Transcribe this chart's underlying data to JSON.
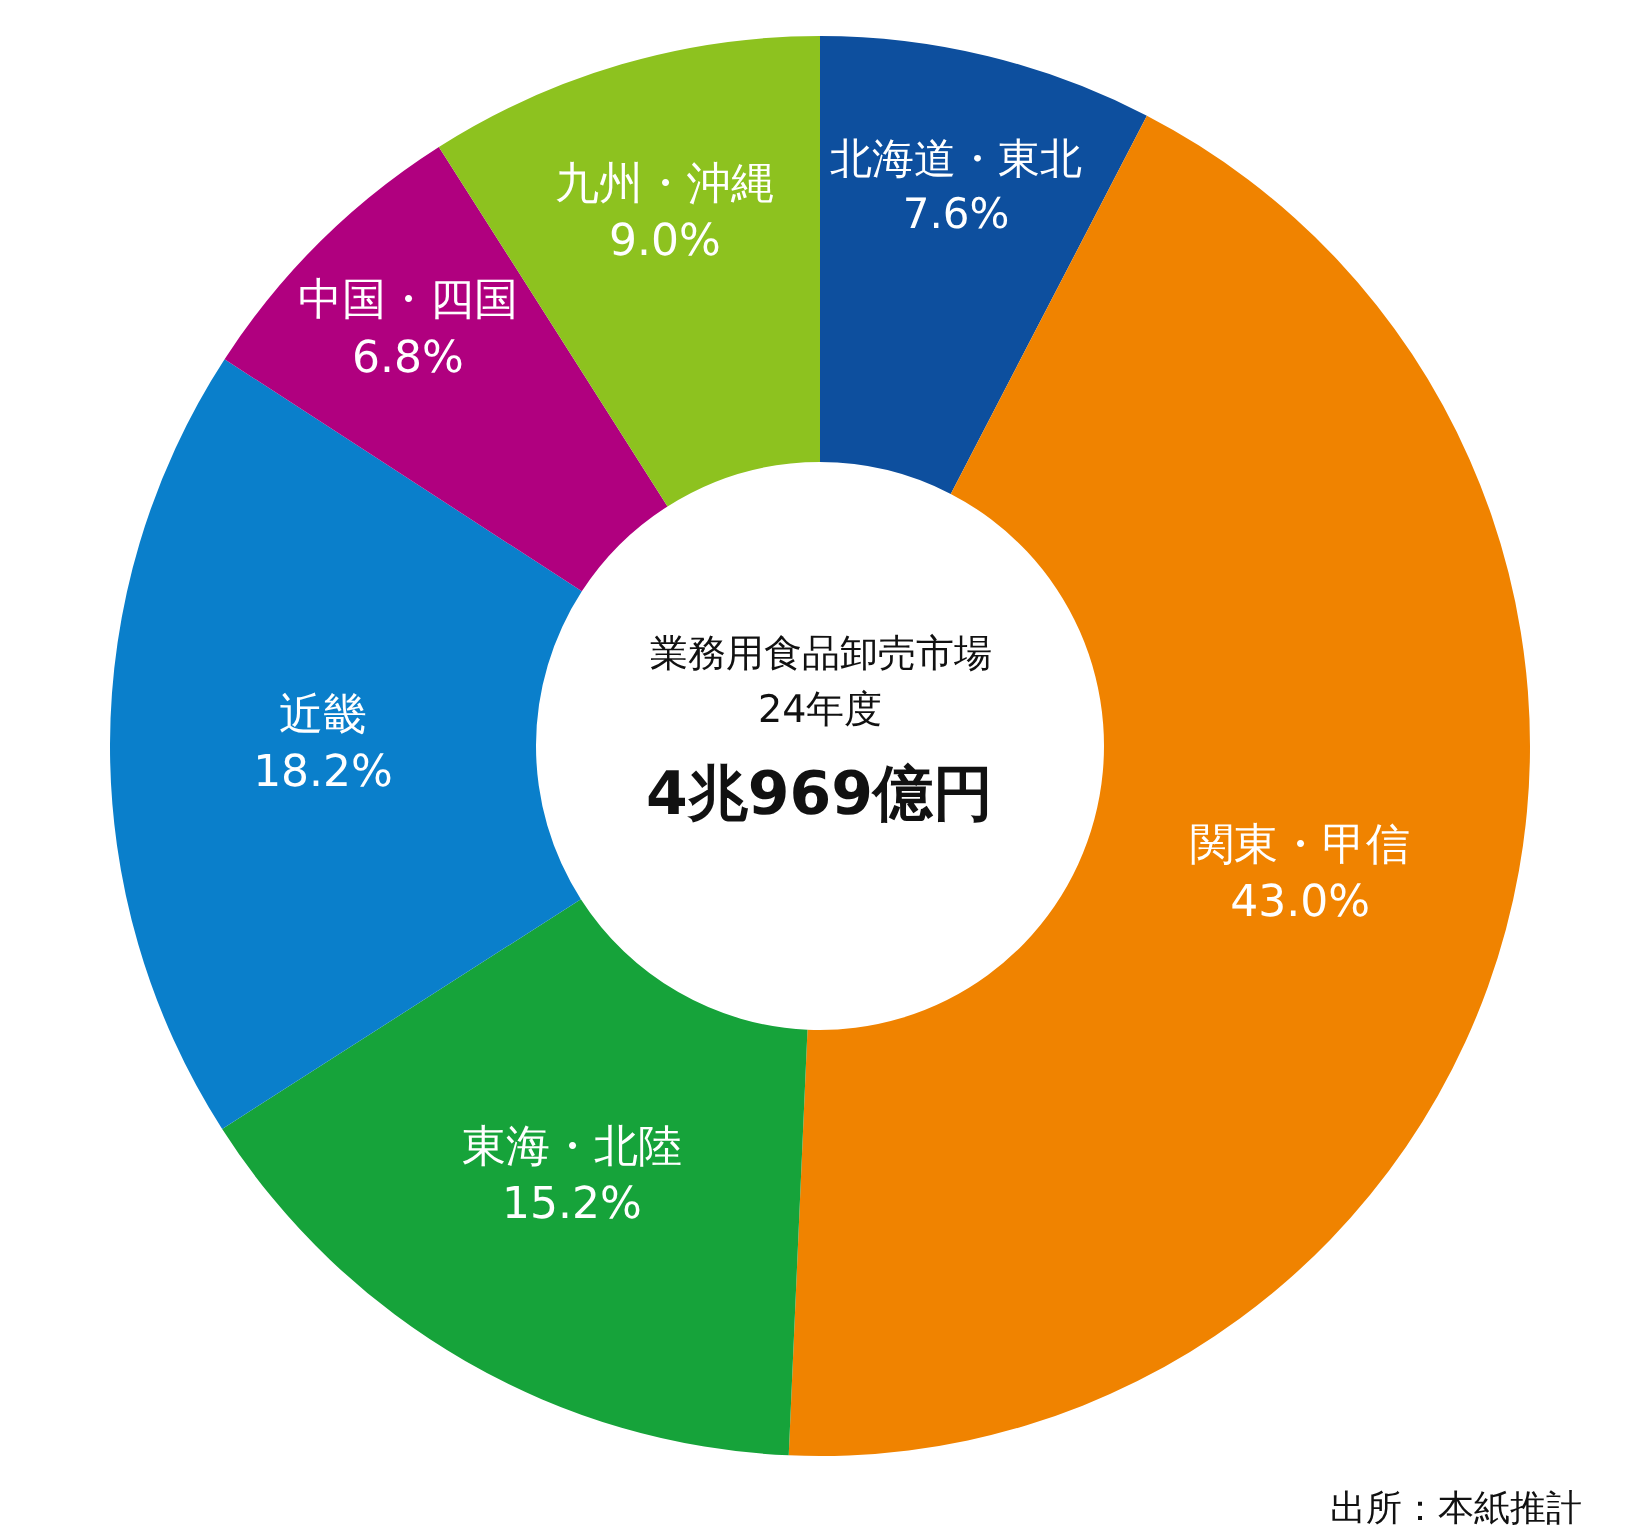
{
  "chart_data": {
    "type": "donut",
    "title": "業務用食品卸売市場",
    "subtitle": "24年度",
    "annotations": [
      "4兆969億円",
      "出所：本紙推計"
    ],
    "categories": [
      "北海道・東北",
      "関東・甲信",
      "東海・北陸",
      "近畿",
      "中国・四国",
      "九州・沖縄"
    ],
    "values": [
      7.6,
      43.0,
      15.2,
      18.2,
      6.8,
      9.0
    ],
    "value_labels": [
      "7.6%",
      "43.0%",
      "15.2%",
      "18.2%",
      "6.8%",
      "9.0%"
    ],
    "colors": [
      "#0d4f9e",
      "#f08300",
      "#16a33a",
      "#0a7fcb",
      "#b0007f",
      "#8dc21f"
    ],
    "legend": false
  }
}
